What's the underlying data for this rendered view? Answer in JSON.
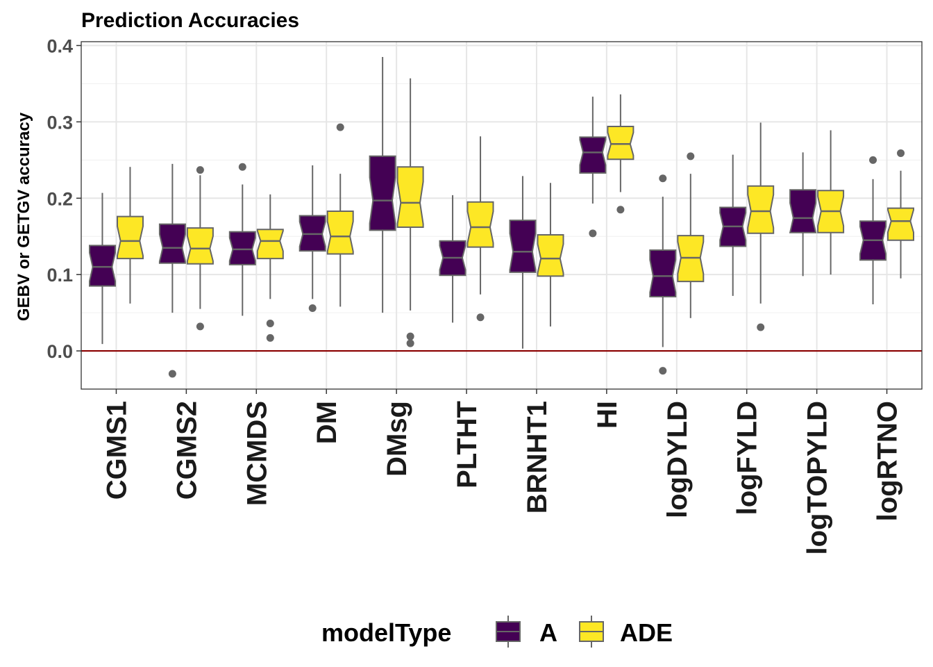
{
  "chart_data": {
    "type": "boxplot",
    "title": "Prediction Accuracies",
    "xlabel": "",
    "ylabel": "GEBV or GETGV accuracy",
    "ylim": [
      -0.05,
      0.405
    ],
    "yticks": [
      "0.0",
      "0.1",
      "0.2",
      "0.3",
      "0.4"
    ],
    "ytick_values": [
      0.0,
      0.1,
      0.2,
      0.3,
      0.4
    ],
    "reference_line": {
      "y": 0.0,
      "color": "#8b0000"
    },
    "grid": true,
    "categories": [
      "CGMS1",
      "CGMS2",
      "MCMDS",
      "DM",
      "DMsg",
      "PLTHT",
      "BRNHT1",
      "HI",
      "logDYLD",
      "logFYLD",
      "logTOPYLD",
      "logRTNO"
    ],
    "legend": {
      "title": "modelType",
      "position": "bottom"
    },
    "series": [
      {
        "name": "A",
        "color": "#440154",
        "boxes": [
          {
            "min": 0.009,
            "q1": 0.085,
            "median": 0.11,
            "q3": 0.138,
            "max": 0.207,
            "outliers": []
          },
          {
            "min": 0.05,
            "q1": 0.115,
            "median": 0.135,
            "q3": 0.166,
            "max": 0.245,
            "outliers": [
              -0.03
            ]
          },
          {
            "min": 0.046,
            "q1": 0.113,
            "median": 0.133,
            "q3": 0.156,
            "max": 0.218,
            "outliers": [
              0.241
            ]
          },
          {
            "min": 0.068,
            "q1": 0.131,
            "median": 0.153,
            "q3": 0.177,
            "max": 0.243,
            "outliers": [
              0.056
            ]
          },
          {
            "min": 0.05,
            "q1": 0.158,
            "median": 0.197,
            "q3": 0.255,
            "max": 0.385,
            "outliers": []
          },
          {
            "min": 0.037,
            "q1": 0.099,
            "median": 0.122,
            "q3": 0.144,
            "max": 0.204,
            "outliers": []
          },
          {
            "min": 0.003,
            "q1": 0.103,
            "median": 0.13,
            "q3": 0.171,
            "max": 0.229,
            "outliers": []
          },
          {
            "min": 0.193,
            "q1": 0.233,
            "median": 0.26,
            "q3": 0.28,
            "max": 0.333,
            "outliers": [
              0.154
            ]
          },
          {
            "min": 0.005,
            "q1": 0.071,
            "median": 0.098,
            "q3": 0.132,
            "max": 0.202,
            "outliers": [
              0.226,
              -0.026
            ]
          },
          {
            "min": 0.072,
            "q1": 0.137,
            "median": 0.163,
            "q3": 0.188,
            "max": 0.257,
            "outliers": []
          },
          {
            "min": 0.098,
            "q1": 0.155,
            "median": 0.174,
            "q3": 0.211,
            "max": 0.26,
            "outliers": []
          },
          {
            "min": 0.061,
            "q1": 0.119,
            "median": 0.145,
            "q3": 0.17,
            "max": 0.225,
            "outliers": [
              0.25
            ]
          }
        ]
      },
      {
        "name": "ADE",
        "color": "#fde725",
        "boxes": [
          {
            "min": 0.062,
            "q1": 0.121,
            "median": 0.144,
            "q3": 0.176,
            "max": 0.241,
            "outliers": []
          },
          {
            "min": 0.055,
            "q1": 0.114,
            "median": 0.134,
            "q3": 0.161,
            "max": 0.23,
            "outliers": [
              0.237,
              0.032
            ]
          },
          {
            "min": 0.068,
            "q1": 0.121,
            "median": 0.144,
            "q3": 0.159,
            "max": 0.205,
            "outliers": [
              0.036,
              0.017
            ]
          },
          {
            "min": 0.058,
            "q1": 0.127,
            "median": 0.15,
            "q3": 0.183,
            "max": 0.232,
            "outliers": [
              0.293
            ]
          },
          {
            "min": 0.053,
            "q1": 0.162,
            "median": 0.194,
            "q3": 0.241,
            "max": 0.357,
            "outliers": [
              0.019,
              0.01
            ]
          },
          {
            "min": 0.074,
            "q1": 0.136,
            "median": 0.162,
            "q3": 0.195,
            "max": 0.281,
            "outliers": [
              0.044
            ]
          },
          {
            "min": 0.032,
            "q1": 0.098,
            "median": 0.121,
            "q3": 0.152,
            "max": 0.22,
            "outliers": []
          },
          {
            "min": 0.208,
            "q1": 0.251,
            "median": 0.271,
            "q3": 0.294,
            "max": 0.336,
            "outliers": [
              0.185
            ]
          },
          {
            "min": 0.043,
            "q1": 0.091,
            "median": 0.122,
            "q3": 0.151,
            "max": 0.232,
            "outliers": [
              0.255
            ]
          },
          {
            "min": 0.062,
            "q1": 0.154,
            "median": 0.183,
            "q3": 0.216,
            "max": 0.299,
            "outliers": [
              0.031
            ]
          },
          {
            "min": 0.1,
            "q1": 0.155,
            "median": 0.183,
            "q3": 0.21,
            "max": 0.289,
            "outliers": []
          },
          {
            "min": 0.095,
            "q1": 0.145,
            "median": 0.17,
            "q3": 0.187,
            "max": 0.236,
            "outliers": [
              0.259
            ]
          }
        ]
      }
    ]
  }
}
